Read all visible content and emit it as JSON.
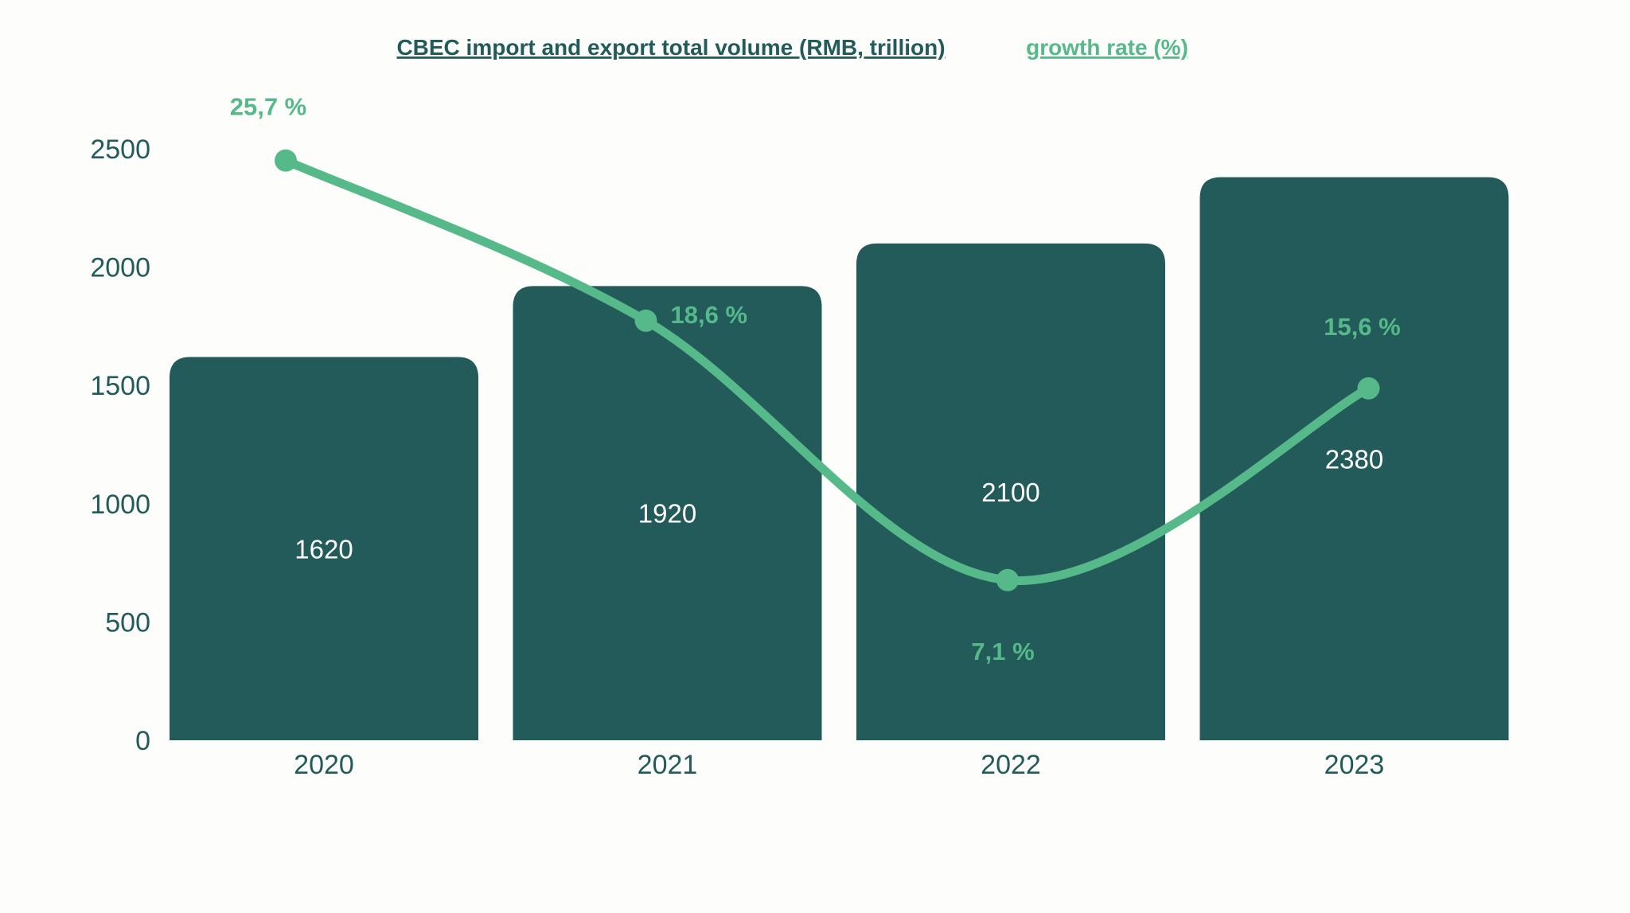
{
  "chart_data": {
    "type": "bar",
    "categories": [
      "2020",
      "2021",
      "2022",
      "2023"
    ],
    "series": [
      {
        "name": "CBEC import and export total volume (RMB, trillion)",
        "type": "bar",
        "values": [
          1620,
          1920,
          2100,
          2380
        ],
        "labels": [
          "1620",
          "1920",
          "2100",
          "2380"
        ],
        "color": "#225b5a"
      },
      {
        "name": "growth rate (%)",
        "type": "line",
        "values": [
          25.7,
          18.6,
          7.1,
          15.6
        ],
        "labels": [
          "25,7 %",
          "18,6 %",
          "7,1 %",
          "15,6 %"
        ],
        "color": "#56b98a",
        "smooth": true
      }
    ],
    "yticks": [
      "0",
      "500",
      "1000",
      "1500",
      "2000",
      "2500"
    ],
    "ylim": [
      0,
      2500
    ],
    "y2lim": [
      0,
      26.5
    ],
    "grid": false,
    "legend_position": "top"
  }
}
